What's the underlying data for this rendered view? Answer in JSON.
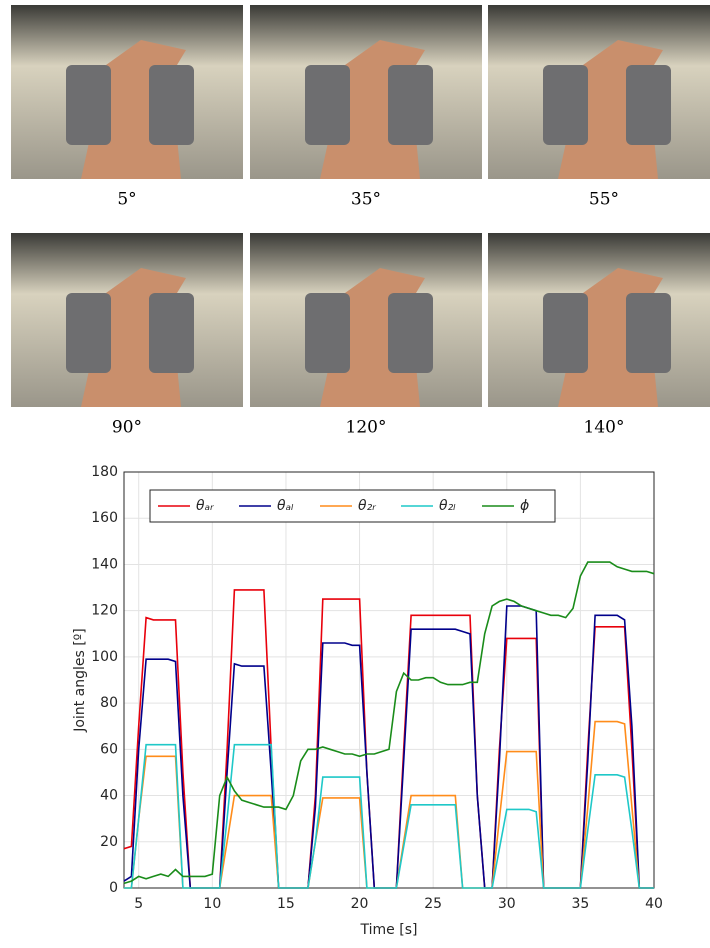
{
  "photos": [
    {
      "caption": "5°"
    },
    {
      "caption": "35°"
    },
    {
      "caption": "55°"
    },
    {
      "caption": "90°"
    },
    {
      "caption": "120°"
    },
    {
      "caption": "140°"
    }
  ],
  "chart_data": {
    "type": "line",
    "xlabel": "Time [s]",
    "ylabel": "Joint angles [º]",
    "xlim": [
      4,
      40
    ],
    "ylim": [
      0,
      180
    ],
    "xticks": [
      5,
      10,
      15,
      20,
      25,
      30,
      35,
      40
    ],
    "yticks": [
      0,
      20,
      40,
      60,
      80,
      100,
      120,
      140,
      160,
      180
    ],
    "grid": true,
    "legend": "top-left",
    "x": [
      4,
      4.5,
      5,
      5.5,
      6,
      6.5,
      7,
      7.5,
      8,
      8.5,
      9,
      9.5,
      10,
      10.5,
      11,
      11.5,
      12,
      12.5,
      13,
      13.5,
      14,
      14.5,
      15,
      15.5,
      16,
      16.5,
      17,
      17.5,
      18,
      18.5,
      19,
      19.5,
      20,
      20.5,
      21,
      21.5,
      22,
      22.5,
      23,
      23.5,
      24,
      24.5,
      25,
      25.5,
      26,
      26.5,
      27,
      27.5,
      28,
      28.5,
      29,
      29.5,
      30,
      30.5,
      31,
      31.5,
      32,
      32.5,
      33,
      33.5,
      34,
      34.5,
      35,
      35.5,
      36,
      36.5,
      37,
      37.5,
      38,
      38.5,
      39,
      39.5,
      40
    ],
    "series": [
      {
        "name": "θₐᵣ",
        "color": "#e8000b",
        "values": [
          17,
          18,
          70,
          117,
          116,
          116,
          116,
          116,
          50,
          0,
          0,
          0,
          0,
          0,
          60,
          129,
          129,
          129,
          129,
          129,
          60,
          0,
          0,
          0,
          0,
          0,
          40,
          125,
          125,
          125,
          125,
          125,
          125,
          50,
          0,
          0,
          0,
          0,
          60,
          118,
          118,
          118,
          118,
          118,
          118,
          118,
          118,
          118,
          40,
          0,
          0,
          60,
          108,
          108,
          108,
          108,
          108,
          0,
          0,
          0,
          0,
          0,
          0,
          60,
          113,
          113,
          113,
          113,
          113,
          60,
          0,
          0,
          0
        ]
      },
      {
        "name": "θₐₗ",
        "color": "#00008b",
        "values": [
          3,
          5,
          60,
          99,
          99,
          99,
          99,
          98,
          40,
          0,
          0,
          0,
          0,
          0,
          50,
          97,
          96,
          96,
          96,
          96,
          50,
          0,
          0,
          0,
          0,
          0,
          35,
          106,
          106,
          106,
          106,
          105,
          105,
          50,
          0,
          0,
          0,
          0,
          55,
          112,
          112,
          112,
          112,
          112,
          112,
          112,
          111,
          110,
          40,
          0,
          0,
          55,
          122,
          122,
          122,
          121,
          120,
          0,
          0,
          0,
          0,
          0,
          0,
          55,
          118,
          118,
          118,
          118,
          116,
          70,
          0,
          0,
          0
        ]
      },
      {
        "name": "θ₂ᵣ",
        "color": "#ff8c1a",
        "values": [
          0,
          0,
          30,
          57,
          57,
          57,
          57,
          57,
          0,
          0,
          0,
          0,
          0,
          0,
          20,
          40,
          40,
          40,
          40,
          40,
          40,
          0,
          0,
          0,
          0,
          0,
          20,
          39,
          39,
          39,
          39,
          39,
          39,
          0,
          0,
          0,
          0,
          0,
          20,
          40,
          40,
          40,
          40,
          40,
          40,
          40,
          0,
          0,
          0,
          0,
          0,
          30,
          59,
          59,
          59,
          59,
          59,
          0,
          0,
          0,
          0,
          0,
          0,
          35,
          72,
          72,
          72,
          72,
          71,
          35,
          0,
          0,
          0
        ]
      },
      {
        "name": "θ₂ₗ",
        "color": "#1fc8c8",
        "values": [
          0,
          0,
          30,
          62,
          62,
          62,
          62,
          62,
          0,
          0,
          0,
          0,
          0,
          0,
          30,
          62,
          62,
          62,
          62,
          62,
          62,
          0,
          0,
          0,
          0,
          0,
          20,
          48,
          48,
          48,
          48,
          48,
          48,
          0,
          0,
          0,
          0,
          0,
          18,
          36,
          36,
          36,
          36,
          36,
          36,
          36,
          0,
          0,
          0,
          0,
          0,
          17,
          34,
          34,
          34,
          34,
          33,
          0,
          0,
          0,
          0,
          0,
          0,
          25,
          49,
          49,
          49,
          49,
          48,
          25,
          0,
          0,
          0
        ]
      },
      {
        "name": "ϕ",
        "color": "#1a8c1a",
        "values": [
          2,
          3,
          5,
          4,
          5,
          6,
          5,
          8,
          5,
          5,
          5,
          5,
          6,
          40,
          48,
          42,
          38,
          37,
          36,
          35,
          35,
          35,
          34,
          40,
          55,
          60,
          60,
          61,
          60,
          59,
          58,
          58,
          57,
          58,
          58,
          59,
          60,
          85,
          93,
          90,
          90,
          91,
          91,
          89,
          88,
          88,
          88,
          89,
          89,
          110,
          122,
          124,
          125,
          124,
          122,
          121,
          120,
          119,
          118,
          118,
          117,
          121,
          135,
          141,
          141,
          141,
          141,
          139,
          138,
          137,
          137,
          137,
          136
        ]
      }
    ]
  }
}
